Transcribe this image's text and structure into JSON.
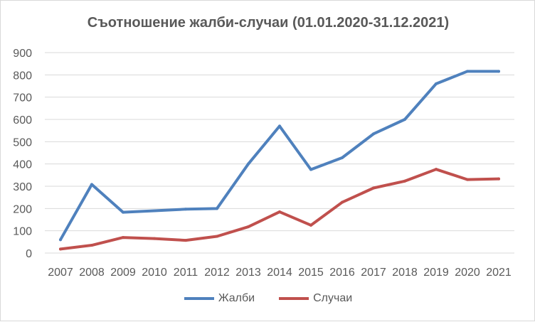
{
  "chart_data": {
    "type": "line",
    "title": "Съотношение жалби-случаи (01.01.2020-31.12.2021)",
    "xlabel": "",
    "ylabel": "",
    "categories": [
      "2007",
      "2008",
      "2009",
      "2010",
      "2011",
      "2012",
      "2013",
      "2014",
      "2015",
      "2016",
      "2017",
      "2018",
      "2019",
      "2020",
      "2021"
    ],
    "ylim": [
      0,
      900
    ],
    "yticks": [
      0,
      100,
      200,
      300,
      400,
      500,
      600,
      700,
      800,
      900
    ],
    "grid": true,
    "legend_position": "bottom",
    "series": [
      {
        "name": "Жалби",
        "color": "#4f81bd",
        "values": [
          60,
          308,
          183,
          190,
          197,
          200,
          400,
          570,
          375,
          428,
          535,
          600,
          760,
          816,
          816
        ]
      },
      {
        "name": "Случаи",
        "color": "#c0504d",
        "values": [
          18,
          35,
          70,
          65,
          57,
          75,
          118,
          185,
          125,
          228,
          292,
          323,
          376,
          330,
          333
        ]
      }
    ]
  }
}
